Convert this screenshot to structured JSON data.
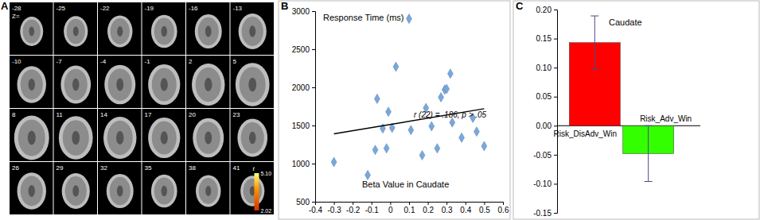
{
  "chart_data": [
    {
      "type": "brain_slices",
      "panel": "A",
      "z_label": "Z=",
      "slices": [
        -28,
        -25,
        -22,
        -19,
        -16,
        -13,
        -10,
        -7,
        -4,
        -1,
        2,
        5,
        8,
        11,
        14,
        17,
        20,
        23,
        26,
        29,
        32,
        35,
        38,
        41
      ],
      "colorbar": {
        "label": "t",
        "range": [
          2.02,
          5.1
        ],
        "ticks": [
          {
            "value": 5.1,
            "label": "5.10"
          },
          2.02
        ]
      }
    },
    {
      "type": "scatter",
      "panel": "B",
      "title": "Response Time (ms)",
      "x_label": "Beta Value in Caudate",
      "annotation": "r (22) = .186, p > .05",
      "x": [
        -0.3,
        -0.12,
        -0.08,
        -0.07,
        -0.04,
        -0.02,
        -0.01,
        0.01,
        0.03,
        0.1,
        0.11,
        0.17,
        0.19,
        0.22,
        0.25,
        0.27,
        0.29,
        0.3,
        0.32,
        0.33,
        0.38,
        0.44,
        0.46,
        0.5
      ],
      "values": [
        1020,
        850,
        1180,
        1850,
        1460,
        1200,
        1680,
        1470,
        2270,
        2900,
        1440,
        1110,
        1730,
        1490,
        1200,
        1870,
        1970,
        1980,
        2180,
        1540,
        1340,
        1600,
        1420,
        1230
      ],
      "color": "#7ba7d8",
      "marker": "diamond",
      "trendline": {
        "x": [
          -0.3,
          0.5
        ],
        "values": [
          1390,
          1720
        ],
        "color": "#000000"
      },
      "xlim": [
        -0.4,
        0.6
      ],
      "xticks": [
        -0.4,
        -0.3,
        -0.2,
        -0.1,
        0,
        0.1,
        0.2,
        0.3,
        0.4,
        0.5,
        0.6
      ],
      "ylim": [
        500,
        3000
      ],
      "yticks": [
        500,
        1000,
        1500,
        2000,
        2500,
        3000
      ]
    },
    {
      "type": "bar",
      "panel": "C",
      "title": "Caudate",
      "categories": [
        "Risk_DisAdv_Win",
        "Risk_Adv_Win"
      ],
      "values": [
        0.143,
        -0.048
      ],
      "errors": [
        0.046,
        0.048
      ],
      "colors": [
        "#ff0000",
        "#33ff00"
      ],
      "ylim": [
        -0.15,
        0.2
      ],
      "yticks": [
        {
          "value": -0.15,
          "label": "-0.15"
        },
        {
          "value": -0.1,
          "label": "-0.10"
        },
        {
          "value": -0.05,
          "label": "-0.05"
        },
        {
          "value": 0,
          "label": "0.00"
        },
        {
          "value": 0.05,
          "label": "0.05"
        },
        {
          "value": 0.1,
          "label": "0.10"
        },
        {
          "value": 0.15,
          "label": "0.15"
        },
        {
          "value": 0.2,
          "label": "0.20"
        }
      ]
    }
  ]
}
